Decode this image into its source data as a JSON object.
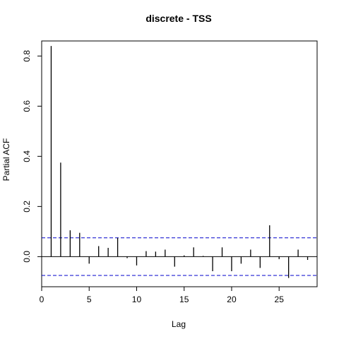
{
  "chart_data": {
    "type": "bar",
    "title": "discrete - TSS",
    "xlabel": "Lag",
    "ylabel": "Partial ACF",
    "xlim": [
      0,
      29
    ],
    "ylim": [
      -0.12,
      0.86
    ],
    "x_ticks": [
      0,
      5,
      10,
      15,
      20,
      25
    ],
    "y_ticks": [
      0.0,
      0.2,
      0.4,
      0.6,
      0.8
    ],
    "y_tick_labels": [
      "0.0",
      "0.2",
      "0.4",
      "0.6",
      "0.8"
    ],
    "confidence_bound": 0.075,
    "series": [
      {
        "x": [
          1,
          2,
          3,
          4,
          5,
          6,
          7,
          8,
          9,
          10,
          11,
          12,
          13,
          14,
          15,
          16,
          17,
          18,
          19,
          20,
          21,
          22,
          23,
          24,
          25,
          26,
          27,
          28
        ],
        "values": [
          0.84,
          0.375,
          0.105,
          0.095,
          -0.028,
          0.042,
          0.035,
          0.075,
          -0.006,
          -0.035,
          0.022,
          0.02,
          0.028,
          -0.04,
          0.005,
          0.037,
          0.003,
          -0.058,
          0.037,
          -0.058,
          -0.028,
          0.028,
          -0.045,
          0.125,
          -0.01,
          -0.085,
          0.028,
          -0.013
        ]
      }
    ],
    "colors": {
      "bars": "#000000",
      "confidence_lines": "#0000cc",
      "frame": "#000000"
    }
  }
}
